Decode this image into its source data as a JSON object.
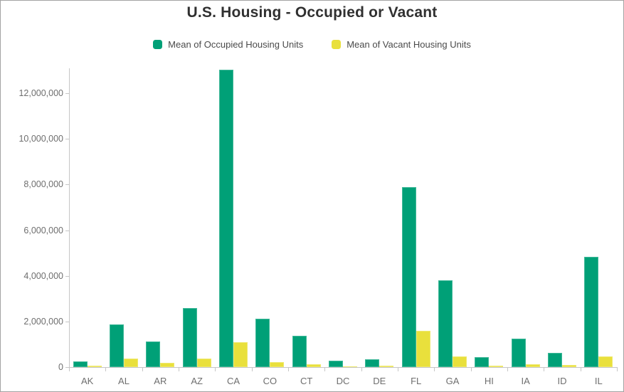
{
  "title": "U.S. Housing - Occupied or Vacant",
  "legend": [
    {
      "label": "Mean of Occupied Housing Units",
      "color": "#00a077"
    },
    {
      "label": "Mean of Vacant Housing Units",
      "color": "#e9e03c"
    }
  ],
  "colors": {
    "occupied": "#00a077",
    "vacant": "#e9e03c",
    "axis": "#c6c6c6",
    "tick_label": "#6e6e6e",
    "title_text": "#303030",
    "legend_text": "#4a4a4a",
    "frame_border": "#a3a3a3",
    "background": "#ffffff"
  },
  "chart_data": {
    "type": "bar",
    "title": "U.S. Housing - Occupied or Vacant",
    "xlabel": "",
    "ylabel": "",
    "grid": false,
    "legend_position": "top",
    "categories": [
      "AK",
      "AL",
      "AR",
      "AZ",
      "CA",
      "CO",
      "CT",
      "DC",
      "DE",
      "FL",
      "GA",
      "HI",
      "IA",
      "ID",
      "IL"
    ],
    "series": [
      {
        "name": "Mean of Occupied Housing Units",
        "color": "#00a077",
        "values": [
          235000,
          1860000,
          1130000,
          2590000,
          13020000,
          2110000,
          1370000,
          270000,
          345000,
          7900000,
          3800000,
          450000,
          1260000,
          620000,
          4840000
        ]
      },
      {
        "name": "Mean of Vacant Housing Units",
        "color": "#e9e03c",
        "values": [
          60000,
          370000,
          185000,
          370000,
          1080000,
          210000,
          130000,
          30000,
          60000,
          1600000,
          470000,
          70000,
          135000,
          80000,
          470000
        ]
      }
    ],
    "ylim": [
      0,
      13060000
    ],
    "yticks": [
      0,
      2000000,
      4000000,
      6000000,
      8000000,
      10000000,
      12000000
    ]
  }
}
